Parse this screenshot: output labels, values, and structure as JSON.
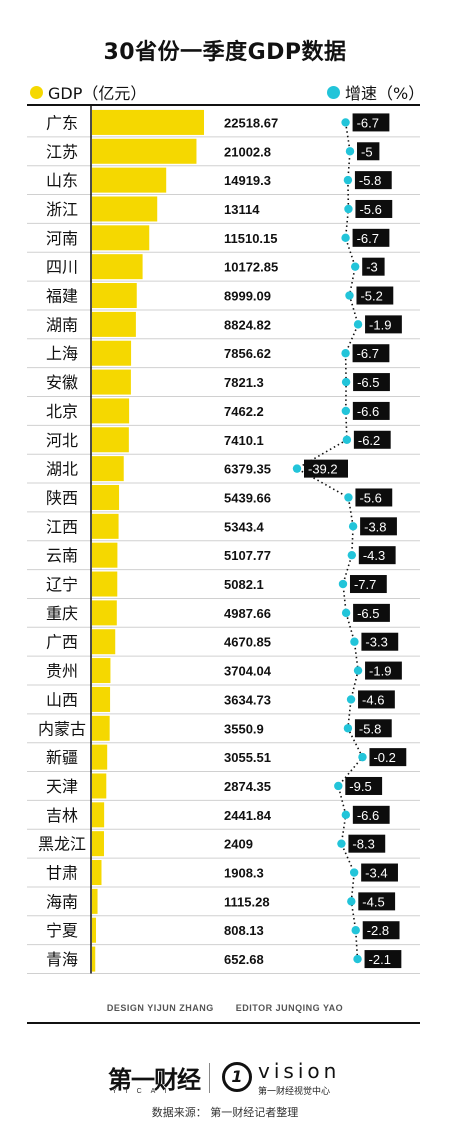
{
  "title": "30省份一季度GDP数据",
  "legend": {
    "gdp_label": "GDP（亿元",
    "gdp_paren": "）",
    "growth_label": "增速（%）",
    "gdp_color": "#f5d800",
    "growth_color": "#22c4d9"
  },
  "chart_data": {
    "type": "bar",
    "categories": [
      "广东",
      "江苏",
      "山东",
      "浙江",
      "河南",
      "四川",
      "福建",
      "湖南",
      "上海",
      "安徽",
      "北京",
      "河北",
      "湖北",
      "陕西",
      "江西",
      "云南",
      "辽宁",
      "重庆",
      "广西",
      "贵州",
      "山西",
      "内蒙古",
      "新疆",
      "天津",
      "吉林",
      "黑龙江",
      "甘肃",
      "海南",
      "宁夏",
      "青海"
    ],
    "series": [
      {
        "name": "GDP（亿元）",
        "values": [
          22518.67,
          21002.8,
          14919.3,
          13114,
          11510.15,
          10172.85,
          8999.09,
          8824.82,
          7856.62,
          7821.3,
          7462.2,
          7410.1,
          6379.35,
          5439.66,
          5343.4,
          5107.77,
          5082.1,
          4987.66,
          4670.85,
          3704.04,
          3634.73,
          3550.9,
          3055.51,
          2874.35,
          2441.84,
          2409,
          1908.3,
          1115.28,
          808.13,
          652.68
        ],
        "labels": [
          "22518.67",
          "21002.8",
          "14919.3",
          "13114",
          "11510.15",
          "10172.85",
          "8999.09",
          "8824.82",
          "7856.62",
          "7821.3",
          "7462.2",
          "7410.1",
          "6379.35",
          "5439.66",
          "5343.4",
          "5107.77",
          "5082.1",
          "4987.66",
          "4670.85",
          "3704.04",
          "3634.73",
          "3550.9",
          "3055.51",
          "2874.35",
          "2441.84",
          "2409",
          "1908.3",
          "1115.28",
          "808.13",
          "652.68"
        ]
      },
      {
        "name": "增速（%）",
        "values": [
          -6.7,
          -5,
          -5.8,
          -5.6,
          -6.7,
          -3,
          -5.2,
          -1.9,
          -6.7,
          -6.5,
          -6.6,
          -6.2,
          -39.2,
          -5.6,
          -3.8,
          -4.3,
          -7.7,
          -6.5,
          -3.3,
          -1.9,
          -4.6,
          -5.8,
          -0.2,
          -9.5,
          -6.6,
          -8.3,
          -3.4,
          -4.5,
          -2.8,
          -2.1
        ],
        "labels": [
          "-6.7",
          "-5",
          "-5.8",
          "-5.6",
          "-6.7",
          "-3",
          "-5.2",
          "-1.9",
          "-6.7",
          "-6.5",
          "-6.6",
          "-6.2",
          "-39.2",
          "-5.6",
          "-3.8",
          "-4.3",
          "-7.7",
          "-6.5",
          "-3.3",
          "-1.9",
          "-4.6",
          "-5.8",
          "-0.2",
          "-9.5",
          "-6.6",
          "-8.3",
          "-3.4",
          "-4.5",
          "-2.8",
          "-2.1"
        ]
      }
    ]
  },
  "credits": {
    "design_label": "DESIGN",
    "design_name": "YIJUN ZHANG",
    "editor_label": "EDITOR",
    "editor_name": "JUNQING YAO"
  },
  "logos": {
    "yicai": "第一财经",
    "yicai_sub": "YICAI",
    "vision_mark": "1",
    "vision_word": "vision",
    "vision_sub": "第一财经视觉中心"
  },
  "source": "数据来源：   第一财经记者整理"
}
